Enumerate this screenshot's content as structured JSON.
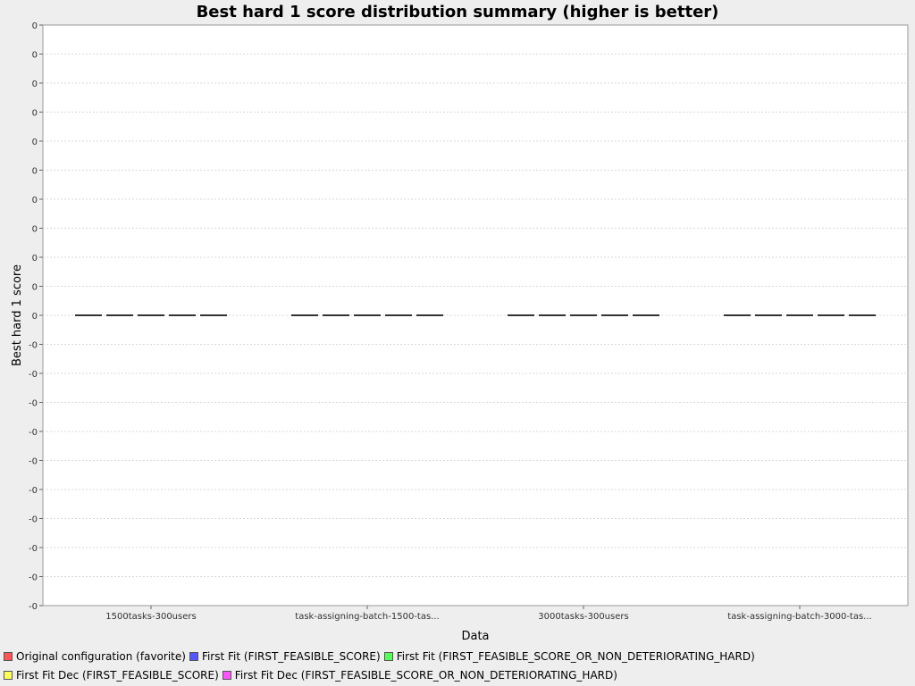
{
  "chart_data": {
    "type": "box",
    "title": "Best hard 1 score distribution summary (higher is better)",
    "xlabel": "Data",
    "ylabel": "Best hard 1 score",
    "categories": [
      "1500tasks-300users",
      "task-assigning-batch-1500-tas...",
      "3000tasks-300users",
      "task-assigning-batch-3000-tas..."
    ],
    "y_ticks": [
      "0",
      "0",
      "0",
      "0",
      "0",
      "0",
      "0",
      "0",
      "0",
      "0",
      "0",
      "-0",
      "-0",
      "-0",
      "-0",
      "-0",
      "-0",
      "-0",
      "-0",
      "-0",
      "-0"
    ],
    "ylim": [
      -1,
      1
    ],
    "grid": true,
    "legend_position": "bottom",
    "series": [
      {
        "name": "Original configuration (favorite)",
        "color": "#ff5555",
        "values": [
          0,
          0,
          0,
          0
        ]
      },
      {
        "name": "First Fit (FIRST_FEASIBLE_SCORE)",
        "color": "#5555ff",
        "values": [
          0,
          0,
          0,
          0
        ]
      },
      {
        "name": "First Fit (FIRST_FEASIBLE_SCORE_OR_NON_DETERIORATING_HARD)",
        "color": "#55ff55",
        "values": [
          0,
          0,
          0,
          0
        ]
      },
      {
        "name": "First Fit Dec (FIRST_FEASIBLE_SCORE)",
        "color": "#ffff55",
        "values": [
          0,
          0,
          0,
          0
        ]
      },
      {
        "name": "First Fit Dec (FIRST_FEASIBLE_SCORE_OR_NON_DETERIORATING_HARD)",
        "color": "#ff55ff",
        "values": [
          0,
          0,
          0,
          0
        ]
      }
    ]
  }
}
